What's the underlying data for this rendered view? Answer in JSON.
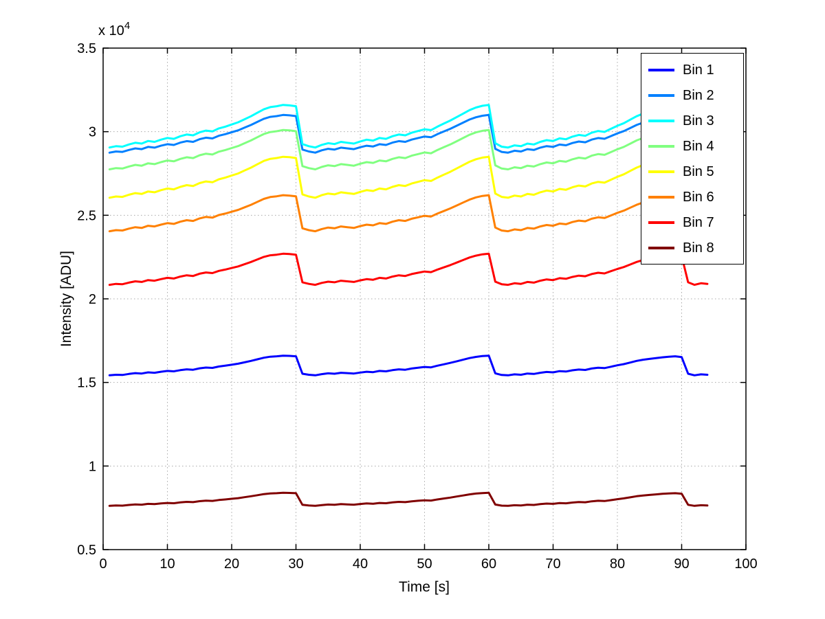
{
  "figure": {
    "background_color": "#ffffff",
    "axis_color": "#000000",
    "grid_color": "#a8a8a8"
  },
  "chart_data": {
    "type": "line",
    "title": "",
    "xlabel": "Time [s]",
    "ylabel": "Intensity [ADU]",
    "y_exponent_label": "x 10",
    "y_exponent_power": "4",
    "y_unit_note": "y values are in units of 10^4 ADU",
    "xlim": [
      0,
      100
    ],
    "ylim": [
      0.5,
      3.5
    ],
    "xticks": [
      0,
      10,
      20,
      30,
      40,
      50,
      60,
      70,
      80,
      90,
      100
    ],
    "yticks": [
      0.5,
      1,
      1.5,
      2,
      2.5,
      3,
      3.5
    ],
    "grid": true,
    "legend": {
      "position": "northeast",
      "border_color": "#000000",
      "background": "#ffffff"
    },
    "x": [
      1,
      2,
      3,
      4,
      5,
      6,
      7,
      8,
      9,
      10,
      11,
      12,
      13,
      14,
      15,
      16,
      17,
      18,
      19,
      20,
      21,
      22,
      23,
      24,
      25,
      26,
      27,
      28,
      29,
      30,
      31,
      32,
      33,
      34,
      35,
      36,
      37,
      38,
      39,
      40,
      41,
      42,
      43,
      44,
      45,
      46,
      47,
      48,
      49,
      50,
      51,
      52,
      53,
      54,
      55,
      56,
      57,
      58,
      59,
      60,
      61,
      62,
      63,
      64,
      65,
      66,
      67,
      68,
      69,
      70,
      71,
      72,
      73,
      74,
      75,
      76,
      77,
      78,
      79,
      80,
      81,
      82,
      83,
      84,
      85,
      86,
      87,
      88,
      89,
      90,
      91,
      92,
      93,
      94
    ],
    "profile": [
      0.02,
      0.05,
      0.04,
      0.09,
      0.13,
      0.11,
      0.17,
      0.15,
      0.2,
      0.24,
      0.22,
      0.28,
      0.32,
      0.3,
      0.37,
      0.41,
      0.39,
      0.46,
      0.5,
      0.55,
      0.6,
      0.67,
      0.74,
      0.82,
      0.9,
      0.95,
      0.97,
      1.0,
      0.99,
      0.97,
      0.1,
      0.05,
      0.02,
      0.08,
      0.12,
      0.1,
      0.15,
      0.13,
      0.11,
      0.16,
      0.2,
      0.18,
      0.24,
      0.22,
      0.28,
      0.32,
      0.3,
      0.36,
      0.4,
      0.44,
      0.42,
      0.5,
      0.57,
      0.64,
      0.72,
      0.8,
      0.88,
      0.94,
      0.98,
      1.0,
      0.12,
      0.04,
      0.02,
      0.07,
      0.05,
      0.11,
      0.09,
      0.15,
      0.19,
      0.17,
      0.23,
      0.21,
      0.27,
      0.31,
      0.29,
      0.36,
      0.4,
      0.38,
      0.45,
      0.52,
      0.58,
      0.66,
      0.74,
      0.8,
      0.84,
      0.88,
      0.92,
      0.95,
      0.97,
      0.93,
      0.1,
      0.02,
      0.07,
      0.05
    ],
    "series_rule": "values[i] = base + (peak - base) * profile[i]  (sawtooth: rises each 30 s cycle, sharp drops after t=30, 60, 90)",
    "series": [
      {
        "name": "Bin 1",
        "color": "#0000FF",
        "base": 1.54,
        "peak": 1.66
      },
      {
        "name": "Bin 2",
        "color": "#0080FF",
        "base": 2.87,
        "peak": 3.1
      },
      {
        "name": "Bin 3",
        "color": "#00FFFF",
        "base": 2.9,
        "peak": 3.16
      },
      {
        "name": "Bin 4",
        "color": "#80FF80",
        "base": 2.77,
        "peak": 3.01
      },
      {
        "name": "Bin 5",
        "color": "#FFFF00",
        "base": 2.6,
        "peak": 2.85
      },
      {
        "name": "Bin 6",
        "color": "#FF8000",
        "base": 2.4,
        "peak": 2.62
      },
      {
        "name": "Bin 7",
        "color": "#FF0000",
        "base": 2.08,
        "peak": 2.27
      },
      {
        "name": "Bin 8",
        "color": "#800000",
        "base": 0.76,
        "peak": 0.84
      }
    ]
  }
}
